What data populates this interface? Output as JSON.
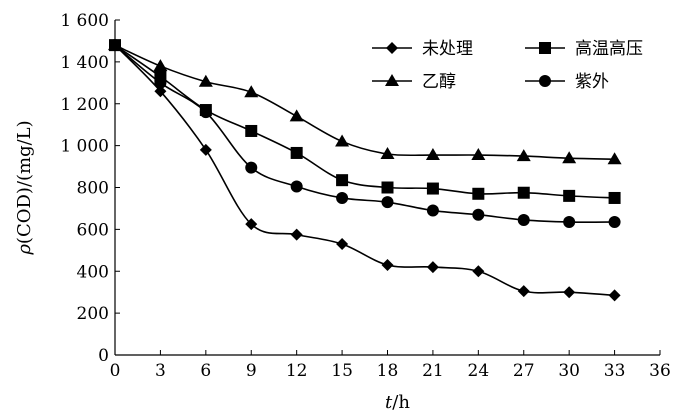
{
  "chart_data": {
    "type": "line",
    "xlabel": {
      "italic": "t",
      "rest": "/h"
    },
    "ylabel": {
      "italic": "ρ",
      "rest": "(COD)/(mg/L)"
    },
    "xlim": [
      0,
      36
    ],
    "ylim": [
      0,
      1600
    ],
    "x_ticks": [
      0,
      3,
      6,
      9,
      12,
      15,
      18,
      21,
      24,
      27,
      30,
      33,
      36
    ],
    "y_ticks": [
      0,
      200,
      400,
      600,
      800,
      1000,
      1200,
      1400,
      1600
    ],
    "y_tick_labels": [
      "0",
      "200",
      "400",
      "600",
      "800",
      "1 000",
      "1 200",
      "1 400",
      "1 600"
    ],
    "grid": false,
    "legend_placement": "top-right",
    "x": [
      0,
      3,
      6,
      9,
      12,
      15,
      18,
      21,
      24,
      27,
      30,
      33
    ],
    "series": [
      {
        "name": "未处理",
        "marker": "diamond",
        "color": "#000000",
        "values": [
          1480,
          1260,
          980,
          625,
          575,
          530,
          430,
          420,
          400,
          305,
          300,
          285
        ]
      },
      {
        "name": "高温高压",
        "marker": "square",
        "color": "#000000",
        "values": [
          1480,
          1330,
          1170,
          1070,
          965,
          835,
          800,
          795,
          770,
          775,
          760,
          750
        ]
      },
      {
        "name": "乙醇",
        "marker": "triangle",
        "color": "#000000",
        "values": [
          1480,
          1380,
          1305,
          1255,
          1140,
          1020,
          960,
          955,
          955,
          950,
          940,
          935
        ]
      },
      {
        "name": "紫外",
        "marker": "circle",
        "color": "#000000",
        "values": [
          1480,
          1300,
          1160,
          895,
          805,
          750,
          730,
          690,
          670,
          645,
          635,
          635
        ]
      }
    ]
  }
}
